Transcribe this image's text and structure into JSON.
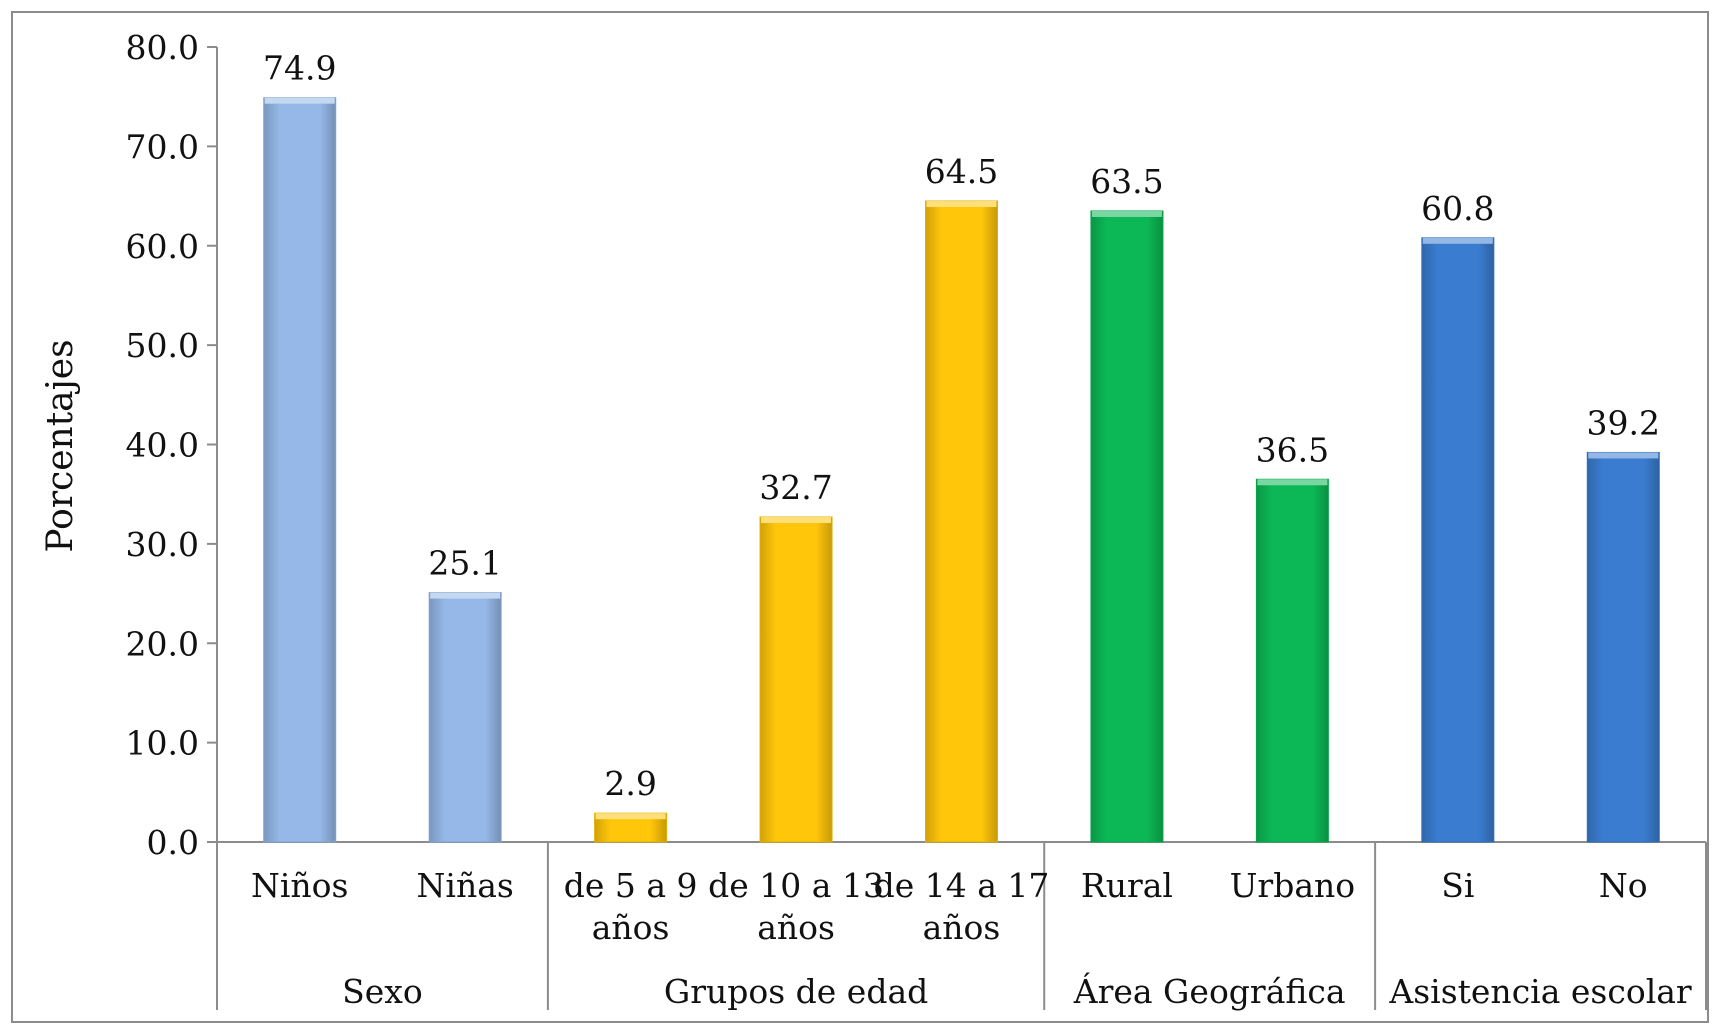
{
  "chart_data": {
    "type": "bar",
    "ylabel": "Porcentajes",
    "ylim": [
      0,
      80
    ],
    "ytick_labels": [
      "0.0",
      "10.0",
      "20.0",
      "30.0",
      "40.0",
      "50.0",
      "60.0",
      "70.0",
      "80.0"
    ],
    "categories": [
      {
        "label": "Niños",
        "group": "Sexo",
        "value": 74.9,
        "value_label": "74.9"
      },
      {
        "label": "Niñas",
        "group": "Sexo",
        "value": 25.1,
        "value_label": "25.1"
      },
      {
        "label": "de 5 a 9 años",
        "group": "Grupos de edad",
        "value": 2.9,
        "value_label": "2.9"
      },
      {
        "label": "de 10 a 13 años",
        "group": "Grupos de edad",
        "value": 32.7,
        "value_label": "32.7"
      },
      {
        "label": "de 14 a 17 años",
        "group": "Grupos de edad",
        "value": 64.5,
        "value_label": "64.5"
      },
      {
        "label": "Rural",
        "group": "Área Geográfica",
        "value": 63.5,
        "value_label": "63.5"
      },
      {
        "label": "Urbano",
        "group": "Área Geográfica",
        "value": 36.5,
        "value_label": "36.5"
      },
      {
        "label": "Si",
        "group": "Asistencia escolar",
        "value": 60.8,
        "value_label": "60.8"
      },
      {
        "label": "No",
        "group": "Asistencia escolar",
        "value": 39.2,
        "value_label": "39.2"
      }
    ],
    "groups": [
      {
        "label": "Sexo",
        "color": "#95b8e8"
      },
      {
        "label": "Grupos de edad",
        "color": "#ffc60a"
      },
      {
        "label": "Área Geográfica",
        "color": "#0cb855"
      },
      {
        "label": "Asistencia escolar",
        "color": "#3a7dd0"
      }
    ],
    "grid": false,
    "legend": "none"
  }
}
